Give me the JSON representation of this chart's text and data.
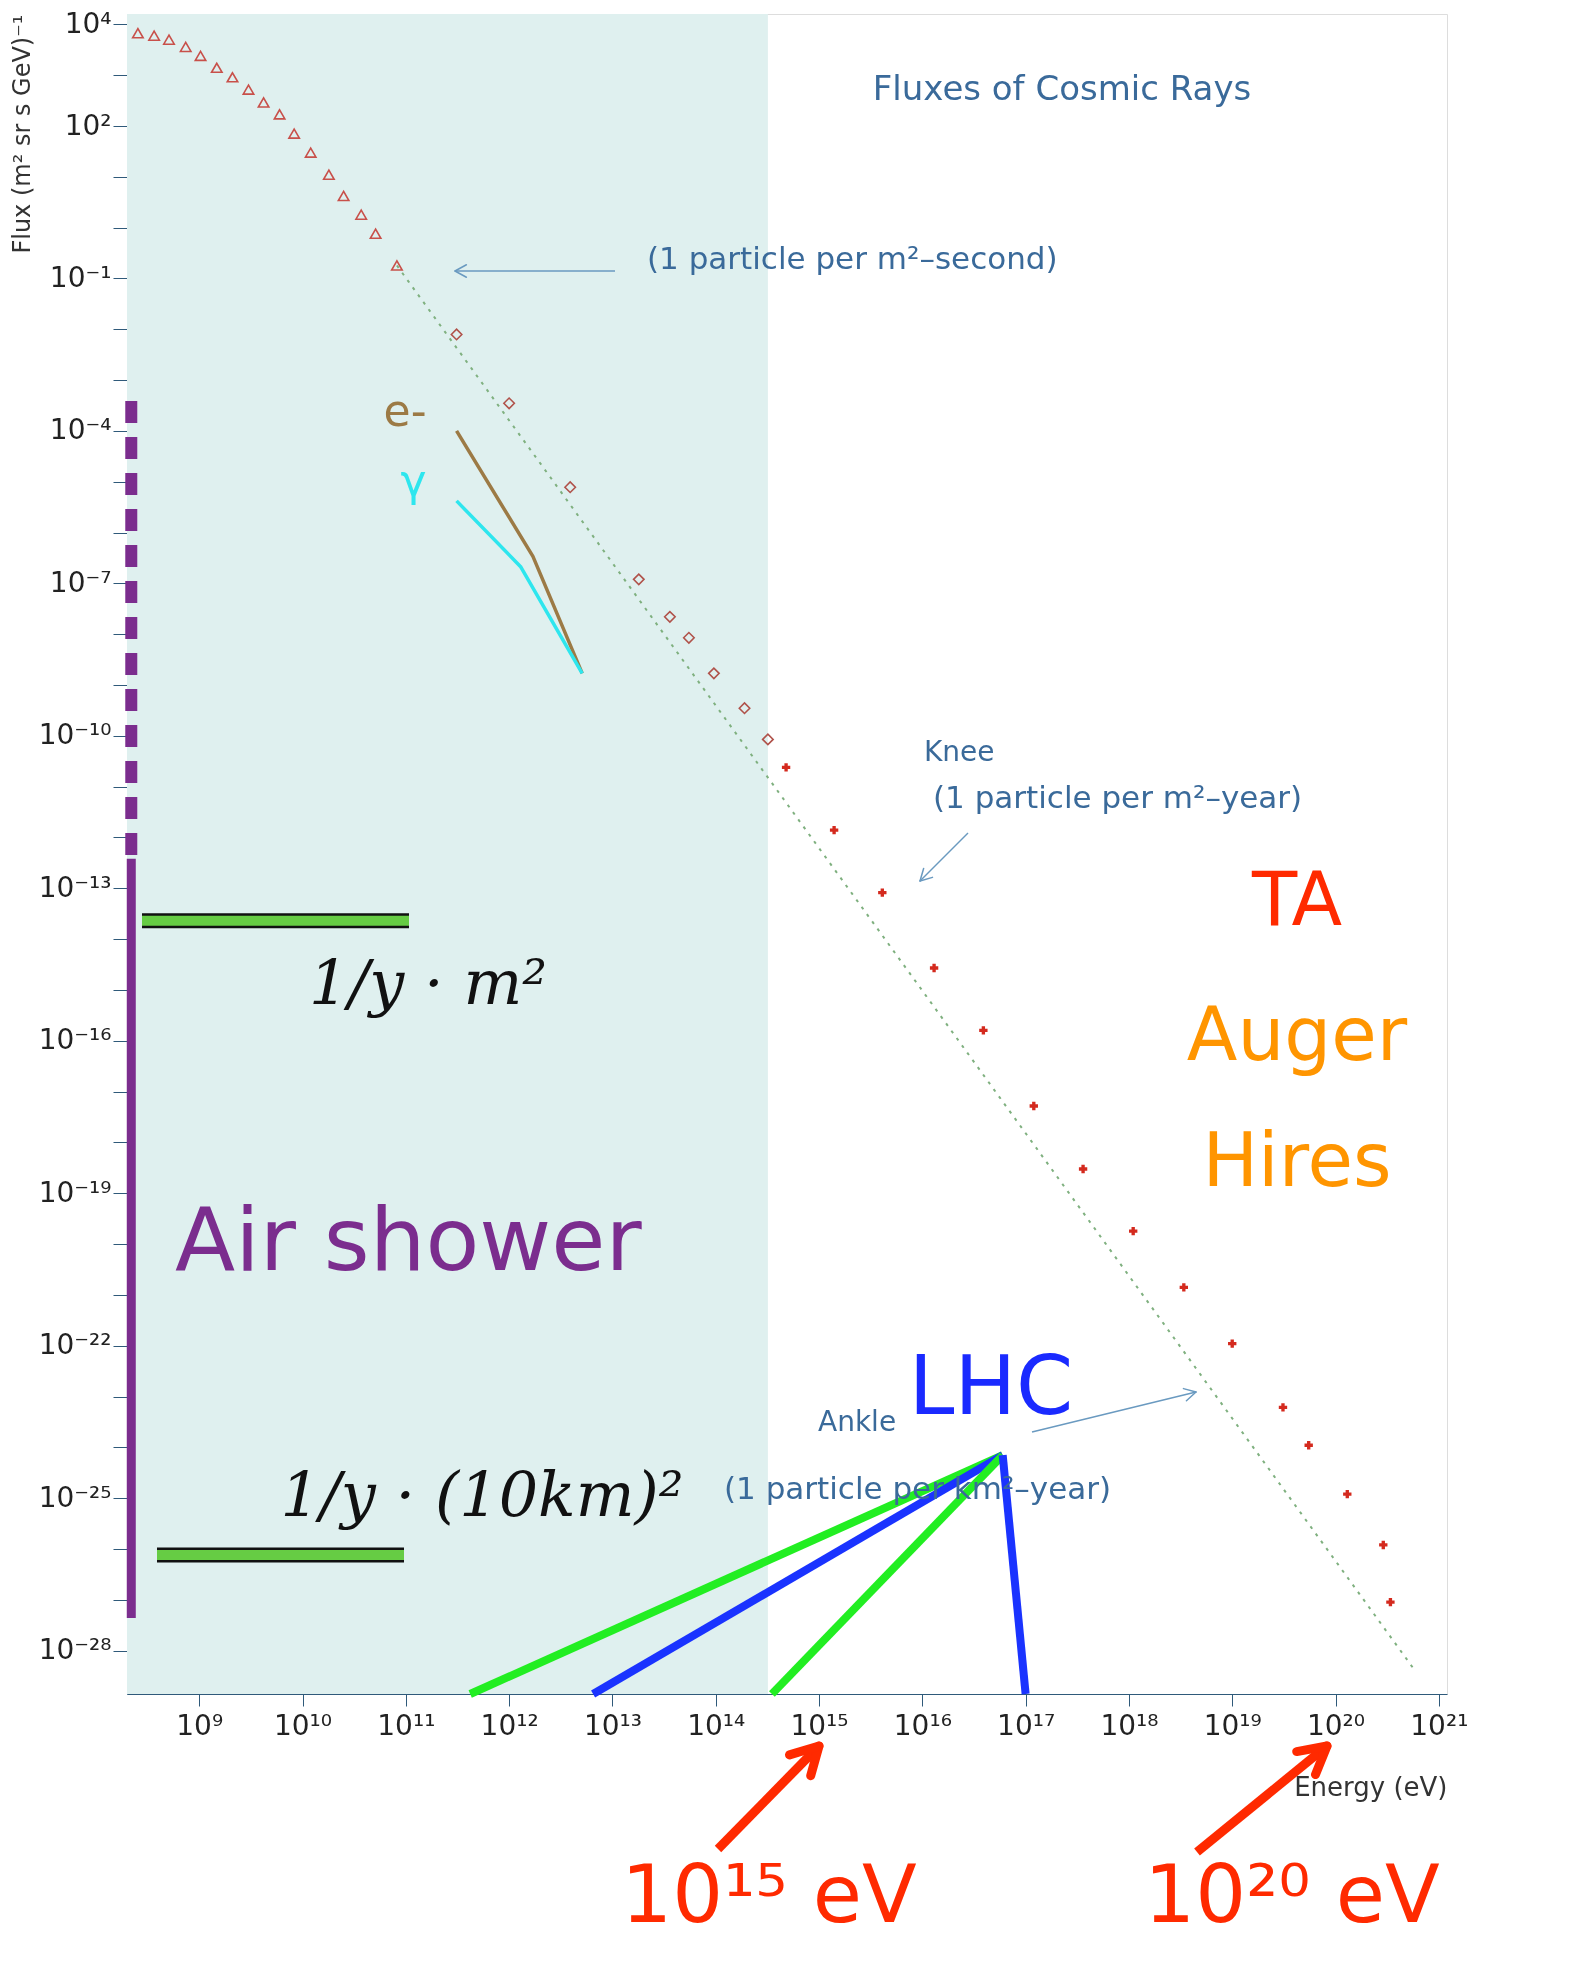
{
  "chart_data": {
    "type": "scatter",
    "title": "Fluxes of Cosmic Rays",
    "xlabel": "Energy (eV)",
    "ylabel": "Flux (m² sr s GeV)⁻¹",
    "log": "xy",
    "xlim": [
      200000000.0,
      1.2e+21
    ],
    "ylim": [
      1.4e-29,
      16000.0
    ],
    "xticks": [
      {
        "value": 1000000000.0,
        "label": "10⁹"
      },
      {
        "value": 10000000000.0,
        "label": "10¹⁰"
      },
      {
        "value": 100000000000.0,
        "label": "10¹¹"
      },
      {
        "value": 1000000000000.0,
        "label": "10¹²"
      },
      {
        "value": 10000000000000.0,
        "label": "10¹³"
      },
      {
        "value": 100000000000000.0,
        "label": "10¹⁴"
      },
      {
        "value": 1000000000000000.0,
        "label": "10¹⁵"
      },
      {
        "value": 1e+16,
        "label": "10¹⁶"
      },
      {
        "value": 1e+17,
        "label": "10¹⁷"
      },
      {
        "value": 1e+18,
        "label": "10¹⁸"
      },
      {
        "value": 1e+19,
        "label": "10¹⁹"
      },
      {
        "value": 1e+20,
        "label": "10²⁰"
      },
      {
        "value": 1e+21,
        "label": "10²¹"
      }
    ],
    "yticks": [
      {
        "value": 1e-28,
        "label": "10⁻²⁸"
      },
      {
        "value": 1e-27,
        "label": null
      },
      {
        "value": 1e-26,
        "label": null
      },
      {
        "value": 1e-25,
        "label": "10⁻²⁵"
      },
      {
        "value": 1e-24,
        "label": null
      },
      {
        "value": 1e-23,
        "label": null
      },
      {
        "value": 1e-22,
        "label": "10⁻²²"
      },
      {
        "value": 1e-21,
        "label": null
      },
      {
        "value": 1e-20,
        "label": null
      },
      {
        "value": 1e-19,
        "label": "10⁻¹⁹"
      },
      {
        "value": 1e-18,
        "label": null
      },
      {
        "value": 1e-17,
        "label": null
      },
      {
        "value": 1e-16,
        "label": "10⁻¹⁶"
      },
      {
        "value": 1e-15,
        "label": null
      },
      {
        "value": 1e-14,
        "label": null
      },
      {
        "value": 1e-13,
        "label": "10⁻¹³"
      },
      {
        "value": 1e-12,
        "label": null
      },
      {
        "value": 1e-11,
        "label": null
      },
      {
        "value": 1e-10,
        "label": "10⁻¹⁰"
      },
      {
        "value": 1e-09,
        "label": null
      },
      {
        "value": 1e-08,
        "label": null
      },
      {
        "value": 1e-07,
        "label": "10⁻⁷"
      },
      {
        "value": 1e-06,
        "label": null
      },
      {
        "value": 1e-05,
        "label": null
      },
      {
        "value": 0.0001,
        "label": "10⁻⁴"
      },
      {
        "value": 0.001,
        "label": null
      },
      {
        "value": 0.01,
        "label": null
      },
      {
        "value": 0.1,
        "label": "10⁻¹"
      },
      {
        "value": 1,
        "label": null
      },
      {
        "value": 10,
        "label": null
      },
      {
        "value": 100,
        "label": "10²"
      },
      {
        "value": 1000,
        "label": null
      },
      {
        "value": 10000,
        "label": "10⁴"
      }
    ],
    "ref_lines": [
      {
        "axis": "y",
        "value": 2.3e-14,
        "label": "1/y · m²",
        "color": "#66cc44"
      },
      {
        "axis": "y",
        "value": 7.6e-27,
        "label": "1/y · (10km)²",
        "color": "#66cc44"
      }
    ],
    "bands": [
      {
        "axis": "x",
        "from": 200000000.0,
        "to": 320000000000000.0,
        "color": "#dff0ef"
      }
    ],
    "series": [
      {
        "marker": "triangle",
        "color": "#c8504a",
        "x": [
          255000000.0,
          366000000.0,
          510000000.0,
          740000000.0,
          1030000000.0,
          1480000000.0,
          2100000000.0,
          3000000000.0,
          4200000000.0,
          6000000000.0,
          8300000000.0,
          12000000000.0,
          18000000000.0,
          25000000000.0,
          37000000000.0,
          51000000000.0,
          82000000000.0
        ],
        "values": [
          6700.0,
          6000.0,
          5000.0,
          3600.0,
          2400.0,
          1400.0,
          910,
          520,
          290,
          170,
          71,
          30,
          11,
          4.2,
          1.8,
          0.76,
          0.18
        ]
      },
      {
        "marker": "diamond",
        "color": "#b0524a",
        "x": [
          310000000000.0,
          1000000000000.0,
          3900000000000.0,
          18000000000000.0,
          36000000000000.0,
          55000000000000.0,
          96000000000000.0,
          190000000000000.0,
          320000000000000.0
        ],
        "values": [
          0.0079,
          0.00035,
          7.8e-06,
          1.2e-07,
          2.2e-08,
          8.5e-09,
          1.7e-09,
          3.5e-10,
          8.5e-11
        ]
      },
      {
        "marker": "cross",
        "color": "#d42a1e",
        "x": [
          480000000000000.0,
          1400000000000000.0,
          4100000000000000.0,
          1.3e+16,
          3.9e+16,
          1.2e+17,
          3.6e+17,
          1.1e+18,
          3.4e+18,
          1e+19,
          3.1e+19,
          5.5e+19,
          1.3e+20,
          2.9e+20,
          3.4e+20
        ],
        "values": [
          2.4e-11,
          1.4e-12,
          8.2e-14,
          2.7e-15,
          1.6e-16,
          5.2e-18,
          3e-19,
          1.8e-20,
          1.4e-21,
          1.1e-22,
          6.1e-24,
          1.1e-24,
          1.2e-25,
          1.2e-26,
          9e-28
        ]
      },
      {
        "type": "line",
        "line_style": "dotted",
        "color": "#7fb07f",
        "x": [
          82000000000.0,
          5.9e+20
        ],
        "values": [
          0.18,
          4e-29
        ]
      },
      {
        "type": "line",
        "name": "e-",
        "color": "#9c7a45",
        "x": [
          310000000000.0,
          1700000000000.0,
          5100000000000.0
        ],
        "values": [
          0.0001,
          3.4e-07,
          1.7e-09
        ]
      },
      {
        "type": "line",
        "name": "γ",
        "color": "#2ee6ee",
        "x": [
          310000000000.0,
          1300000000000.0,
          5100000000000.0
        ],
        "values": [
          4.2e-06,
          2.1e-07,
          1.7e-09
        ]
      },
      {
        "type": "line",
        "line_style": "dashed",
        "color": "#7b2d8e",
        "x": [
          220000000.0,
          220000000.0
        ],
        "values": [
          0.00039,
          3.8e-13
        ]
      },
      {
        "type": "line",
        "color": "#7b2d8e",
        "x": [
          220000000.0,
          220000000.0
        ],
        "values": [
          3.8e-13,
          4.4e-28
        ]
      },
      {
        "type": "line",
        "color": "#22ee22",
        "x": [
          6e+16,
          420000000000.0
        ],
        "values": [
          7e-25,
          1.4e-29
        ]
      },
      {
        "type": "line",
        "color": "#1a33ff",
        "x": [
          6e+16,
          6500000000000.0
        ],
        "values": [
          7e-25,
          1.4e-29
        ]
      },
      {
        "type": "line",
        "color": "#22ee22",
        "x": [
          6e+16,
          350000000000000.0
        ],
        "values": [
          7e-25,
          1.4e-29
        ]
      },
      {
        "type": "line",
        "color": "#1a33ff",
        "x": [
          6e+16,
          1e+17
        ],
        "values": [
          7e-25,
          1.4e-29
        ]
      }
    ],
    "annotations": [
      "(1 particle per m²–second)",
      "Knee",
      "(1 particle per m²–year)",
      "Ankle",
      "(1 particle per km²–year)",
      "Air shower",
      "LHC",
      "TA",
      "Auger",
      "Hires",
      "10¹⁵ eV",
      "10²⁰ eV"
    ]
  }
}
